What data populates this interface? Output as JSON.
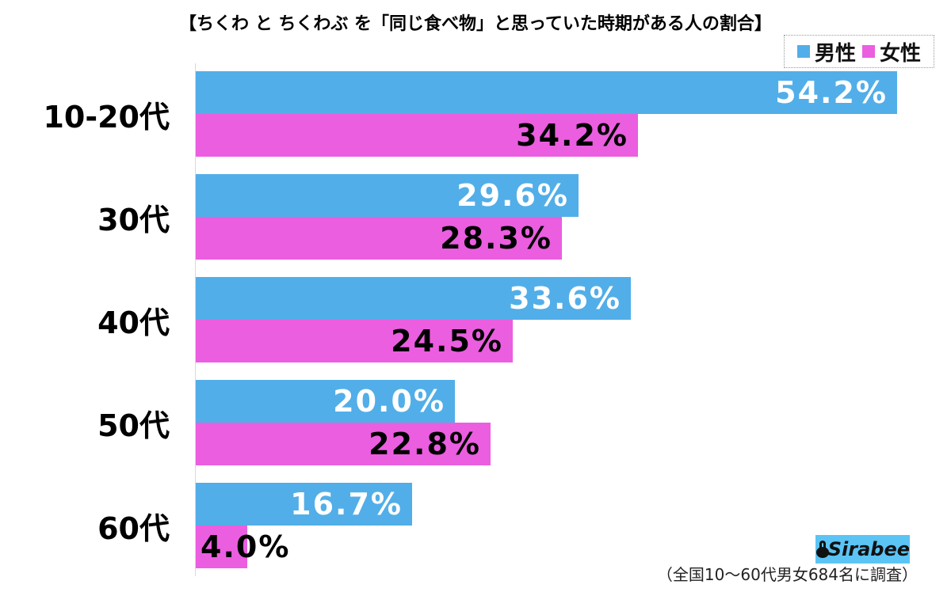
{
  "title": "【ちくわ と ちくわぶ を「同じ食べ物」と思っていた時期がある人の割合】",
  "legend": {
    "items": [
      {
        "label": "男性",
        "color": "#52aee8"
      },
      {
        "label": "女性",
        "color": "#eb5ee0"
      }
    ]
  },
  "groups": [
    {
      "label": "10-20代",
      "male": "54.2%",
      "female": "34.2%"
    },
    {
      "label": "30代",
      "male": "29.6%",
      "female": "28.3%"
    },
    {
      "label": "40代",
      "male": "33.6%",
      "female": "24.5%"
    },
    {
      "label": "50代",
      "male": "20.0%",
      "female": "22.8%"
    },
    {
      "label": "60代",
      "male": "16.7%",
      "female": "4.0%"
    }
  ],
  "logo": {
    "text": "Sirabee",
    "bg_color": "#5bc4f5"
  },
  "note": "（全国10〜60代男女684名に調査）",
  "chart_data": {
    "type": "bar",
    "orientation": "horizontal",
    "title": "【ちくわ と ちくわぶ を「同じ食べ物」と思っていた時期がある人の割合】",
    "categories": [
      "10-20代",
      "30代",
      "40代",
      "50代",
      "60代"
    ],
    "series": [
      {
        "name": "男性",
        "color": "#52aee8",
        "values": [
          54.2,
          29.6,
          33.6,
          20.0,
          16.7
        ]
      },
      {
        "name": "女性",
        "color": "#eb5ee0",
        "values": [
          34.2,
          28.3,
          24.5,
          22.8,
          4.0
        ]
      }
    ],
    "xlabel": "",
    "ylabel": "",
    "unit": "%",
    "grid": false,
    "legend_position": "top-right",
    "annotations": [
      "（全国10〜60代男女684名に調査）",
      "Sirabee"
    ]
  }
}
